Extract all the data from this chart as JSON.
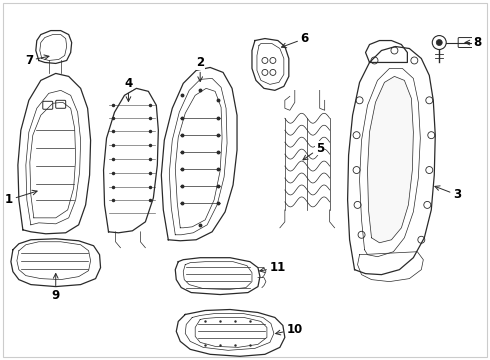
{
  "background_color": "#ffffff",
  "line_color": "#2a2a2a",
  "label_color": "#000000",
  "fig_width": 4.9,
  "fig_height": 3.6,
  "dpi": 100,
  "border_color": "#cccccc"
}
